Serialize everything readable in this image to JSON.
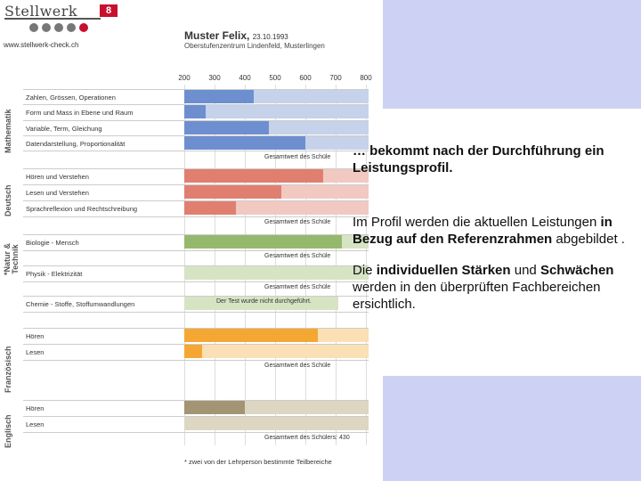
{
  "logo": {
    "name": "Stellwerk",
    "number": "8"
  },
  "url": "www.stellwerk-check.ch",
  "student": {
    "name": "Muster Felix,",
    "date": "23.10.1993",
    "school": "Oberstufenzentrum Lindenfeld, Musterlingen"
  },
  "scale_ticks": [
    "200",
    "300",
    "400",
    "500",
    "600",
    "700",
    "800"
  ],
  "subjects": {
    "mathematik": "Mathematik",
    "deutsch": "Deutsch",
    "natur": "*Natur & Technik",
    "franzoesisch": "Französisch",
    "englisch": "Englisch"
  },
  "categories": {
    "m1": "Zahlen, Grössen, Operationen",
    "m2": "Form und Mass in Ebene und Raum",
    "m3": "Variable, Term, Gleichung",
    "m4": "Datendarstellung, Proportionalität",
    "d1": "Hören und Verstehen",
    "d2": "Lesen und Verstehen",
    "d3": "Sprachreflexion und Rechtschreibung",
    "n1": "Biologie - Mensch",
    "n2": "Physik - Elektrizität",
    "n3": "Chemie - Stoffe, Stoffumwandlungen",
    "f1": "Hören",
    "f2": "Lesen",
    "e1": "Hören",
    "e2": "Lesen"
  },
  "gesamt": {
    "g1": "Gesamtwert des Schüle",
    "g2": "Gesamtwert des Schüle",
    "g3": "Gesamtwert des Schüle",
    "g4": "Gesamtwert des Schüle",
    "g5": "Gesamtwert des Schüle",
    "g6": "Gesamtwert des Schülers: 430"
  },
  "not_done": "Der Test wurde nicht durchgeführt.",
  "footnote": "* zwei von der Lehrperson bestimmte Teilbereiche",
  "text": {
    "p1": "… bekommt nach der Durchführung ein Leistungsprofil.",
    "p2a": "Im Profil werden die aktuellen Leistungen ",
    "p2b": "in Bezug auf den Referenzrahmen",
    "p2c": " abgebildet .",
    "p3a": "Die ",
    "p3b": "individuellen Stärken",
    "p3c": " und ",
    "p3d": "Schwächen",
    "p3e": " werden in den überprüften Fachbereichen ersichtlich."
  },
  "colors": {
    "math_dark": "#6d8fd0",
    "math_light": "#c5d2ea",
    "deutsch_dark": "#e07f70",
    "deutsch_light": "#f1c9c1",
    "natur_dark": "#95b96c",
    "natur_light": "#d6e4c4",
    "franz_dark": "#f5a733",
    "franz_light": "#fbdfb5",
    "engl_dark": "#a39573",
    "engl_light": "#ddd6c2",
    "panel": "#cdd2f4"
  },
  "scores": {
    "m1": 430,
    "m2": 270,
    "m3": 480,
    "m4": 600,
    "d1": 660,
    "d2": 520,
    "d3": 370,
    "n1": 720,
    "n2": 200,
    "f1": 640,
    "f2": 260,
    "e1": 400,
    "e2": 200
  }
}
